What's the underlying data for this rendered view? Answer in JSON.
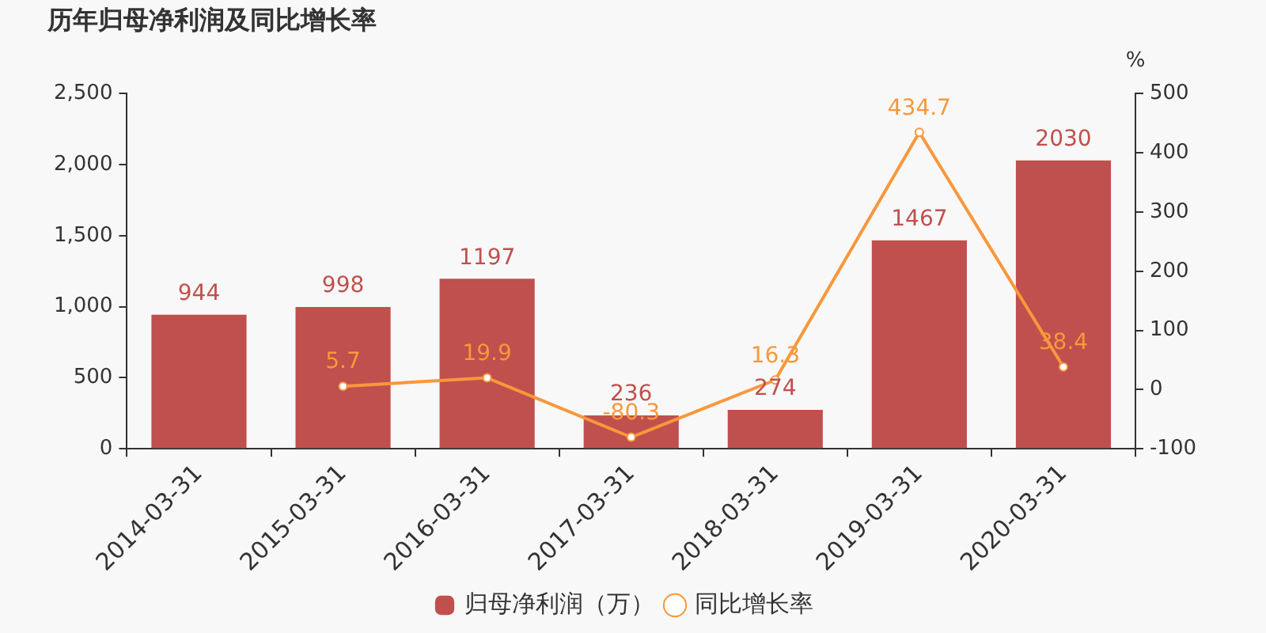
{
  "chart_data": {
    "type": "bar",
    "title": "历年归母净利润及同比增长率",
    "y2label": "%",
    "categories": [
      "2014-03-31",
      "2015-03-31",
      "2016-03-31",
      "2017-03-31",
      "2018-03-31",
      "2019-03-31",
      "2020-03-31"
    ],
    "series": [
      {
        "name": "归母净利润（万）",
        "color": "#c0504d",
        "values": [
          944,
          998,
          1197,
          236,
          274,
          1467,
          2030
        ]
      },
      {
        "name": "同比增长率",
        "type": "line",
        "axis": "y2",
        "color": "#f7983c",
        "marker": "circle",
        "values": [
          null,
          5.7,
          19.9,
          -80.3,
          16.3,
          434.7,
          38.4
        ]
      }
    ],
    "ylim": [
      0,
      2500
    ],
    "yticks": [
      0,
      500,
      {
        "value": 1000,
        "label": "1,000"
      },
      {
        "value": 1500,
        "label": "1,500"
      },
      {
        "value": 2000,
        "label": "2,000"
      },
      {
        "value": 2500,
        "label": "2,500"
      }
    ],
    "y2lim": [
      -100,
      500
    ],
    "y2ticks": [
      -100,
      0,
      100,
      200,
      300,
      400,
      500
    ],
    "data_labels": true,
    "legend": "bottom"
  }
}
